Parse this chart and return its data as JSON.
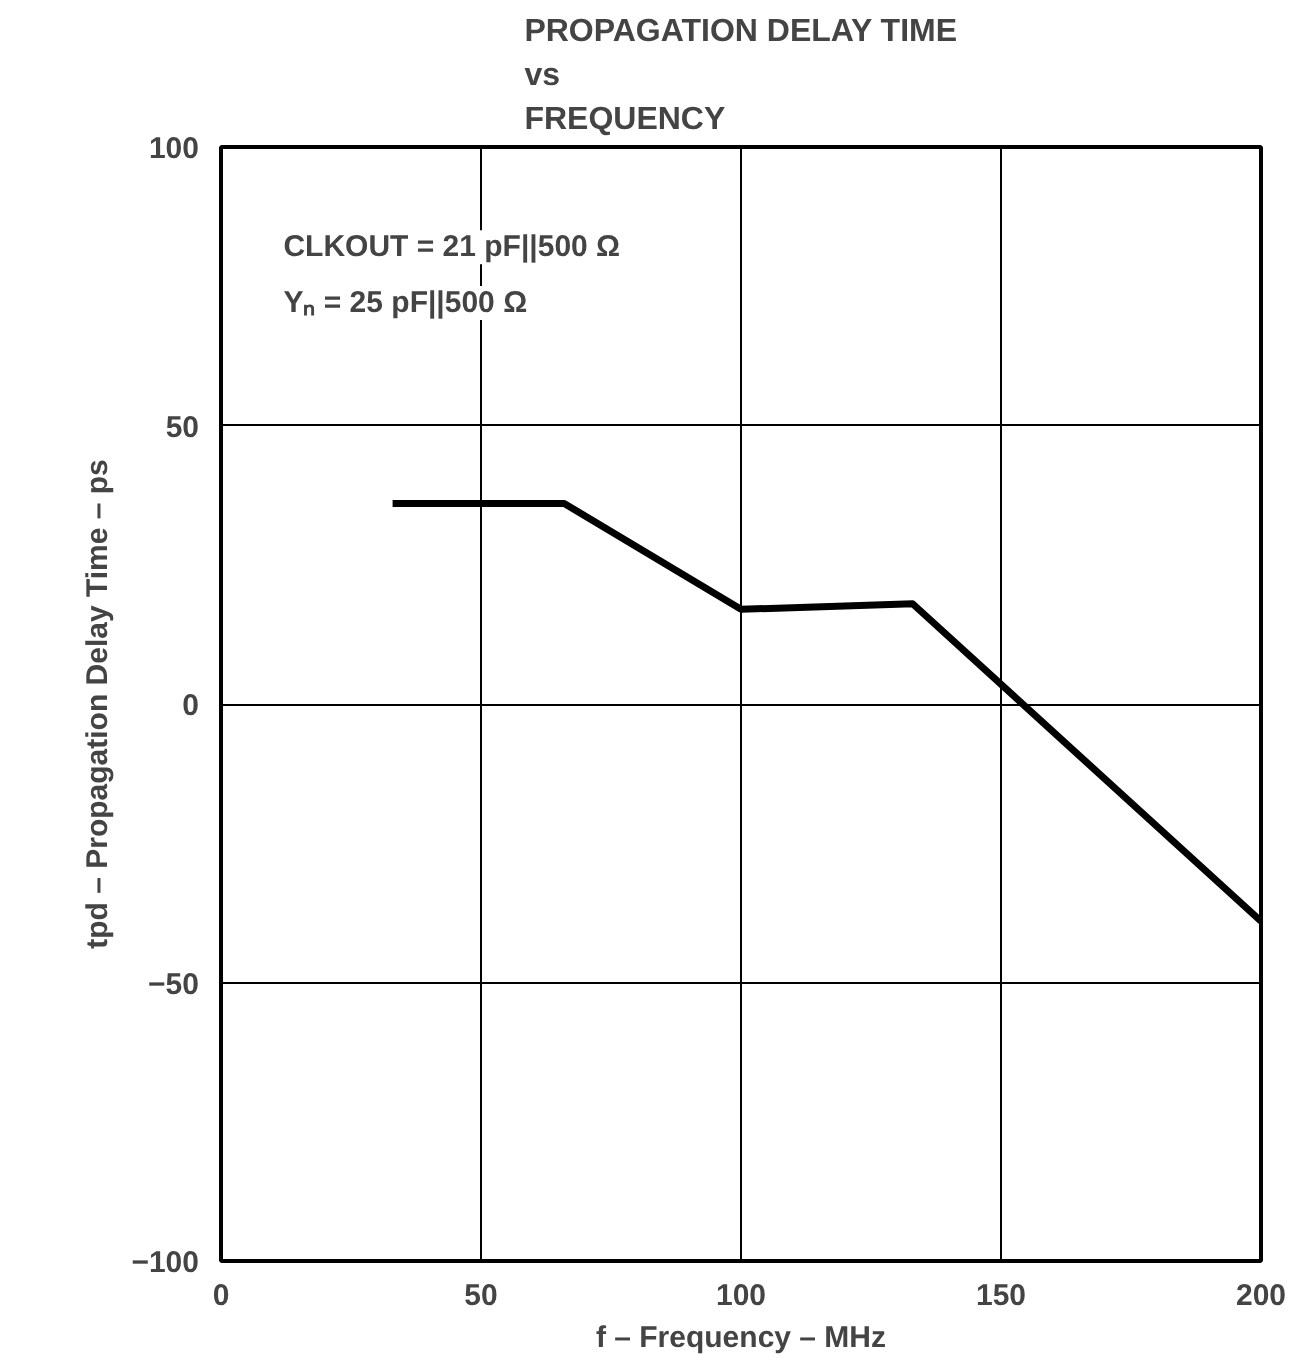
{
  "chart_data": {
    "type": "line",
    "title": "PROPAGATION DELAY TIME\nvs\nFREQUENCY",
    "xlabel": "f – Frequency – MHz",
    "ylabel": "tpd – Propagation Delay Time – ps",
    "x": [
      33,
      66,
      100,
      133,
      200
    ],
    "series": [
      {
        "color": "#000000",
        "values": [
          36,
          36,
          17,
          18,
          -39
        ]
      }
    ],
    "xlim": [
      0,
      200
    ],
    "xticks": [
      0,
      50,
      100,
      150,
      200
    ],
    "ylim": [
      -100,
      100
    ],
    "yticks": [
      {
        "value": -100,
        "label": "−100"
      },
      {
        "value": -50,
        "label": "−50"
      },
      0,
      50,
      100
    ],
    "grid": true,
    "line_style": "solid",
    "annotations": [
      "CLKOUT = 21 pF||500 Ω",
      "Yₙ = 25 pF||500 Ω"
    ]
  }
}
